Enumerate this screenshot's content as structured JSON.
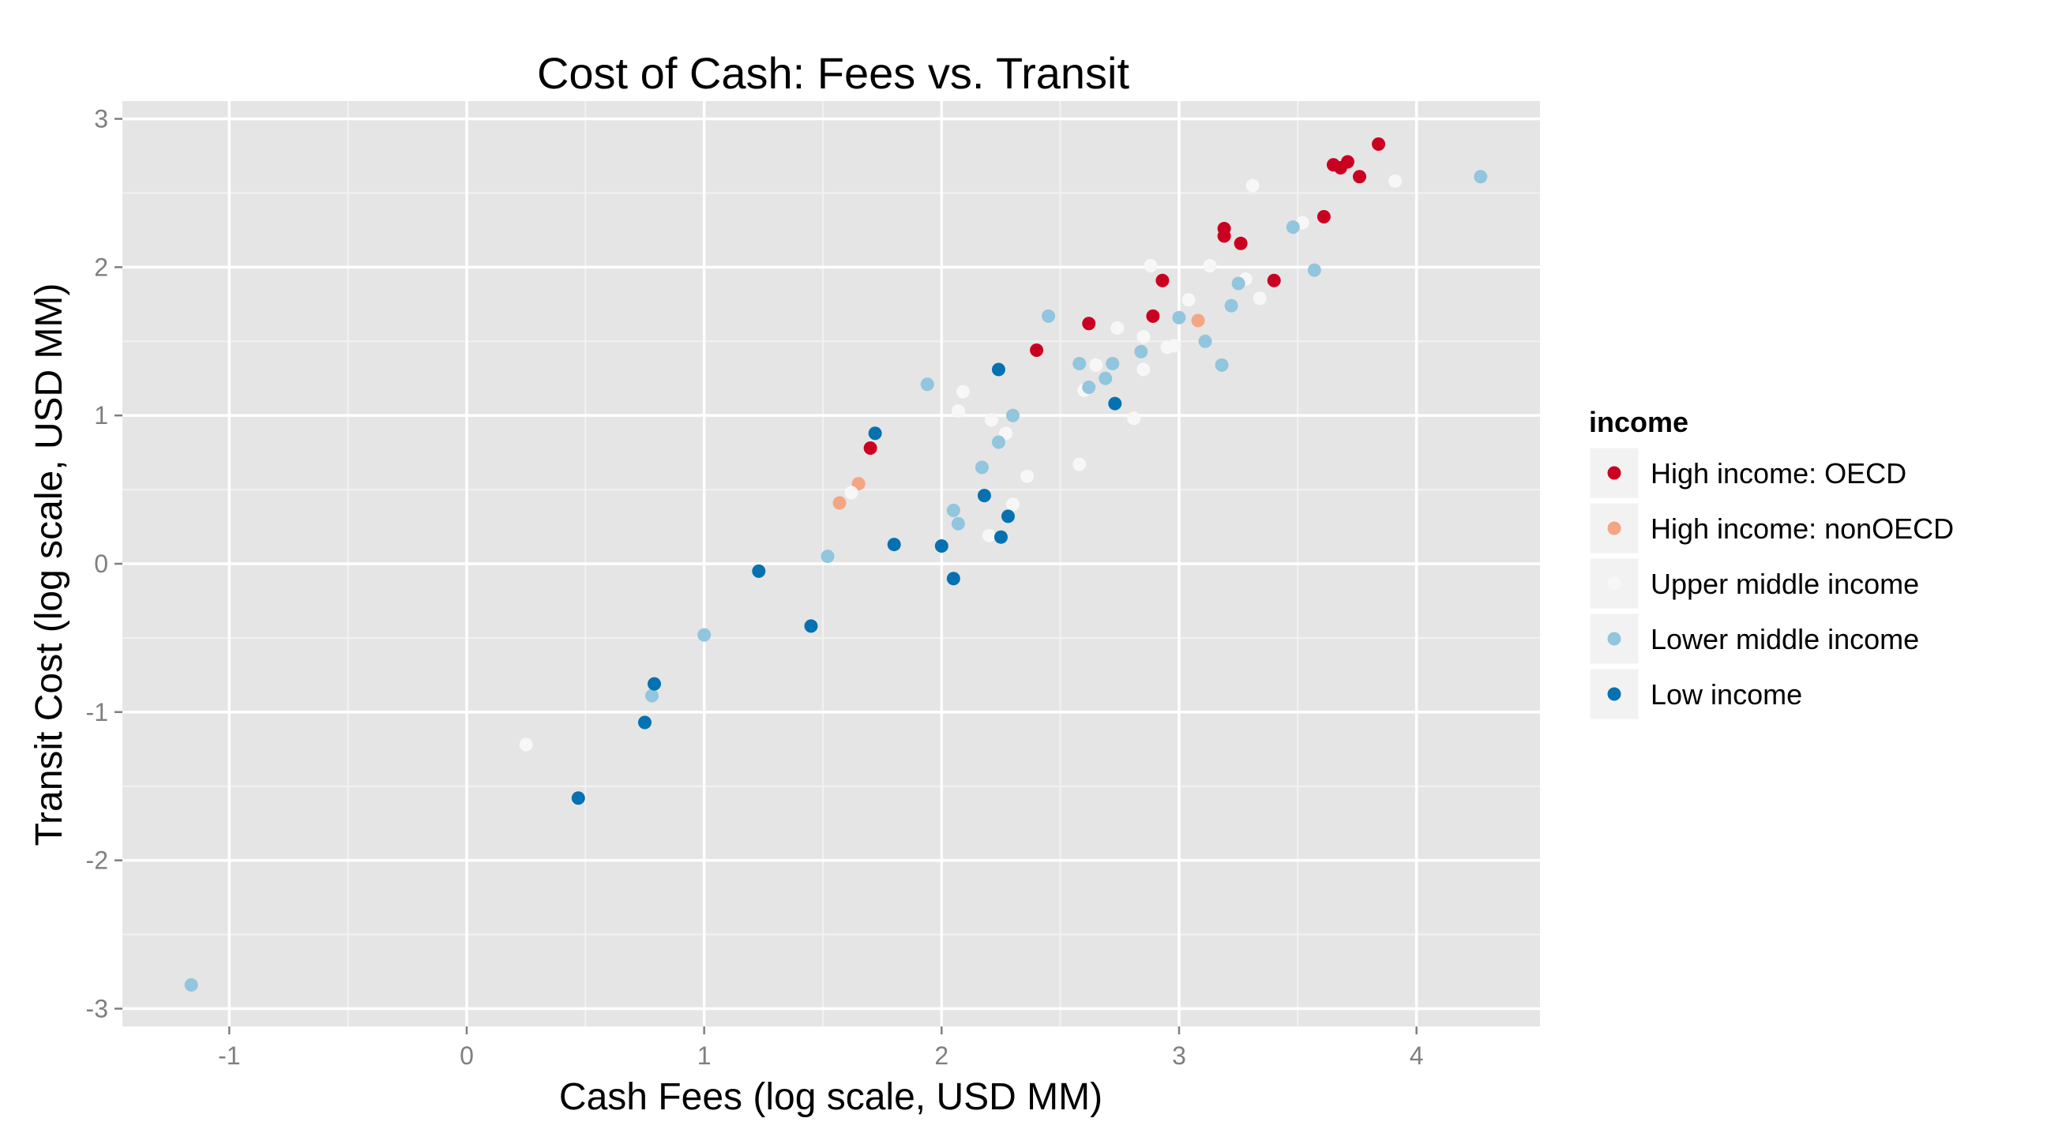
{
  "chart_data": {
    "type": "scatter",
    "title": "Cost of Cash: Fees vs. Transit",
    "xlabel": "Cash Fees (log scale, USD MM)",
    "ylabel": "Transit Cost (log scale, USD MM)",
    "xlim": [
      -1.45,
      4.52
    ],
    "ylim": [
      -3.12,
      3.12
    ],
    "x_ticks": [
      -1,
      0,
      1,
      2,
      3,
      4
    ],
    "y_ticks": [
      -3,
      -2,
      -1,
      0,
      1,
      2,
      3
    ],
    "grid": true,
    "panel_background": "#e5e5e5",
    "legend": {
      "title": "income",
      "position": "right"
    },
    "series": [
      {
        "name": "High income: OECD",
        "color": "#ca0020",
        "points": [
          [
            1.7,
            0.78
          ],
          [
            2.4,
            1.44
          ],
          [
            2.62,
            1.62
          ],
          [
            2.89,
            1.67
          ],
          [
            2.93,
            1.91
          ],
          [
            3.19,
            2.26
          ],
          [
            3.19,
            2.21
          ],
          [
            3.26,
            2.16
          ],
          [
            3.4,
            1.91
          ],
          [
            3.61,
            2.34
          ],
          [
            3.65,
            2.69
          ],
          [
            3.68,
            2.67
          ],
          [
            3.71,
            2.71
          ],
          [
            3.76,
            2.61
          ],
          [
            3.84,
            2.83
          ]
        ]
      },
      {
        "name": "High income: nonOECD",
        "color": "#f4a582",
        "points": [
          [
            1.57,
            0.41
          ],
          [
            1.65,
            0.54
          ],
          [
            3.08,
            1.64
          ]
        ]
      },
      {
        "name": "Upper middle income",
        "color": "#f7f7f7",
        "points": [
          [
            0.25,
            -1.22
          ],
          [
            1.62,
            0.48
          ],
          [
            2.07,
            1.03
          ],
          [
            2.09,
            1.16
          ],
          [
            2.2,
            0.19
          ],
          [
            2.21,
            0.97
          ],
          [
            2.27,
            0.88
          ],
          [
            2.3,
            0.4
          ],
          [
            2.36,
            0.59
          ],
          [
            2.58,
            0.67
          ],
          [
            2.6,
            1.17
          ],
          [
            2.65,
            1.34
          ],
          [
            2.74,
            1.59
          ],
          [
            2.81,
            0.98
          ],
          [
            2.85,
            1.31
          ],
          [
            2.85,
            1.53
          ],
          [
            2.88,
            2.01
          ],
          [
            2.95,
            1.46
          ],
          [
            2.98,
            1.47
          ],
          [
            3.04,
            1.78
          ],
          [
            3.13,
            2.01
          ],
          [
            3.28,
            1.92
          ],
          [
            3.31,
            2.55
          ],
          [
            3.34,
            1.79
          ],
          [
            3.52,
            2.3
          ],
          [
            3.91,
            2.58
          ]
        ]
      },
      {
        "name": "Lower middle income",
        "color": "#92c5de",
        "points": [
          [
            -1.16,
            -2.84
          ],
          [
            0.78,
            -0.89
          ],
          [
            1.0,
            -0.48
          ],
          [
            1.52,
            0.05
          ],
          [
            1.94,
            1.21
          ],
          [
            2.05,
            0.36
          ],
          [
            2.07,
            0.27
          ],
          [
            2.17,
            0.65
          ],
          [
            2.24,
            0.82
          ],
          [
            2.3,
            1.0
          ],
          [
            2.45,
            1.67
          ],
          [
            2.58,
            1.35
          ],
          [
            2.62,
            1.19
          ],
          [
            2.69,
            1.25
          ],
          [
            2.72,
            1.35
          ],
          [
            2.84,
            1.43
          ],
          [
            3.0,
            1.66
          ],
          [
            3.11,
            1.5
          ],
          [
            3.18,
            1.34
          ],
          [
            3.22,
            1.74
          ],
          [
            3.25,
            1.89
          ],
          [
            3.48,
            2.27
          ],
          [
            3.57,
            1.98
          ],
          [
            4.27,
            2.61
          ]
        ]
      },
      {
        "name": "Low income",
        "color": "#0571b0",
        "points": [
          [
            0.47,
            -1.58
          ],
          [
            0.75,
            -1.07
          ],
          [
            0.79,
            -0.81
          ],
          [
            1.23,
            -0.05
          ],
          [
            1.45,
            -0.42
          ],
          [
            1.72,
            0.88
          ],
          [
            1.8,
            0.13
          ],
          [
            2.0,
            0.12
          ],
          [
            2.05,
            -0.1
          ],
          [
            2.18,
            0.46
          ],
          [
            2.24,
            1.31
          ],
          [
            2.25,
            0.18
          ],
          [
            2.28,
            0.32
          ],
          [
            2.73,
            1.08
          ]
        ]
      }
    ]
  }
}
